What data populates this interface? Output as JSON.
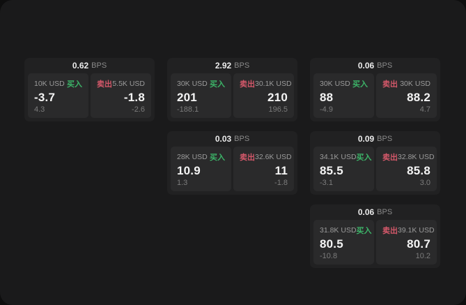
{
  "labels": {
    "buy": "买入",
    "sell": "卖出",
    "bps_unit": "BPS"
  },
  "colors": {
    "buy_green": "#3cb468",
    "sell_red": "#d4586a",
    "card_bg": "#212122",
    "panel_bg": "#2a2a2b",
    "page_bg": "#1a1a1b"
  },
  "cards": [
    {
      "grid": {
        "col": 0,
        "row": 0
      },
      "bps": "0.62",
      "buy": {
        "amount": "10K USD",
        "value": "-3.7",
        "sub": "4.3"
      },
      "sell": {
        "amount": "5.5K USD",
        "value": "-1.8",
        "sub": "-2.6"
      }
    },
    {
      "grid": {
        "col": 1,
        "row": 0
      },
      "bps": "2.92",
      "buy": {
        "amount": "30K USD",
        "value": "201",
        "sub": "-188.1"
      },
      "sell": {
        "amount": "30.1K USD",
        "value": "210",
        "sub": "196.5"
      }
    },
    {
      "grid": {
        "col": 2,
        "row": 0
      },
      "bps": "0.06",
      "buy": {
        "amount": "30K USD",
        "value": "88",
        "sub": "-4.9"
      },
      "sell": {
        "amount": "30K USD",
        "value": "88.2",
        "sub": "4.7"
      }
    },
    {
      "grid": {
        "col": 1,
        "row": 1
      },
      "bps": "0.03",
      "buy": {
        "amount": "28K USD",
        "value": "10.9",
        "sub": "1.3"
      },
      "sell": {
        "amount": "32.6K USD",
        "value": "11",
        "sub": "-1.8"
      }
    },
    {
      "grid": {
        "col": 2,
        "row": 1
      },
      "bps": "0.09",
      "buy": {
        "amount": "34.1K USD",
        "value": "85.5",
        "sub": "-3.1"
      },
      "sell": {
        "amount": "32.8K USD",
        "value": "85.8",
        "sub": "3.0"
      }
    },
    {
      "grid": {
        "col": 2,
        "row": 2
      },
      "bps": "0.06",
      "buy": {
        "amount": "31.8K USD",
        "value": "80.5",
        "sub": "-10.8"
      },
      "sell": {
        "amount": "39.1K USD",
        "value": "80.7",
        "sub": "10.2"
      }
    }
  ]
}
